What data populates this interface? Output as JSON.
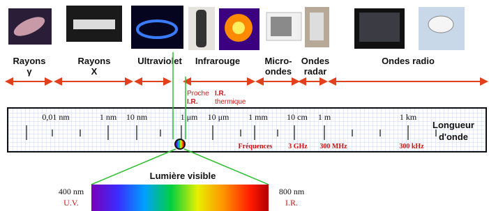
{
  "bands": [
    {
      "lines": [
        "Rayons",
        "γ"
      ]
    },
    {
      "lines": [
        "Rayons",
        "X"
      ]
    },
    {
      "lines": [
        "Ultraviolet"
      ]
    },
    {
      "lines": [
        "Infrarouge"
      ]
    },
    {
      "lines": [
        "Micro-",
        "ondes"
      ]
    },
    {
      "lines": [
        "Ondes",
        "radar"
      ]
    },
    {
      "lines": [
        "Ondes radio"
      ]
    }
  ],
  "infrared": {
    "near": [
      "Proche",
      "I.R."
    ],
    "thermal": [
      "I.R.",
      "thermique"
    ]
  },
  "scale": {
    "ticks": [
      "0,01 nm",
      "1 nm",
      "10 nm",
      "1 μm",
      "10 μm",
      "1 mm",
      "10 cm",
      "1 m",
      "1 km"
    ],
    "axis_title": [
      "Longueur",
      "d'onde"
    ],
    "frequency_title": "Fréquences",
    "frequencies": [
      "3 GHz",
      "300 MHz",
      "300 kHz"
    ]
  },
  "visible": {
    "title": "Lumière visible",
    "left": {
      "wavelength": "400 nm",
      "name": "U.V."
    },
    "right": {
      "wavelength": "800 nm",
      "name": "I.R."
    }
  }
}
